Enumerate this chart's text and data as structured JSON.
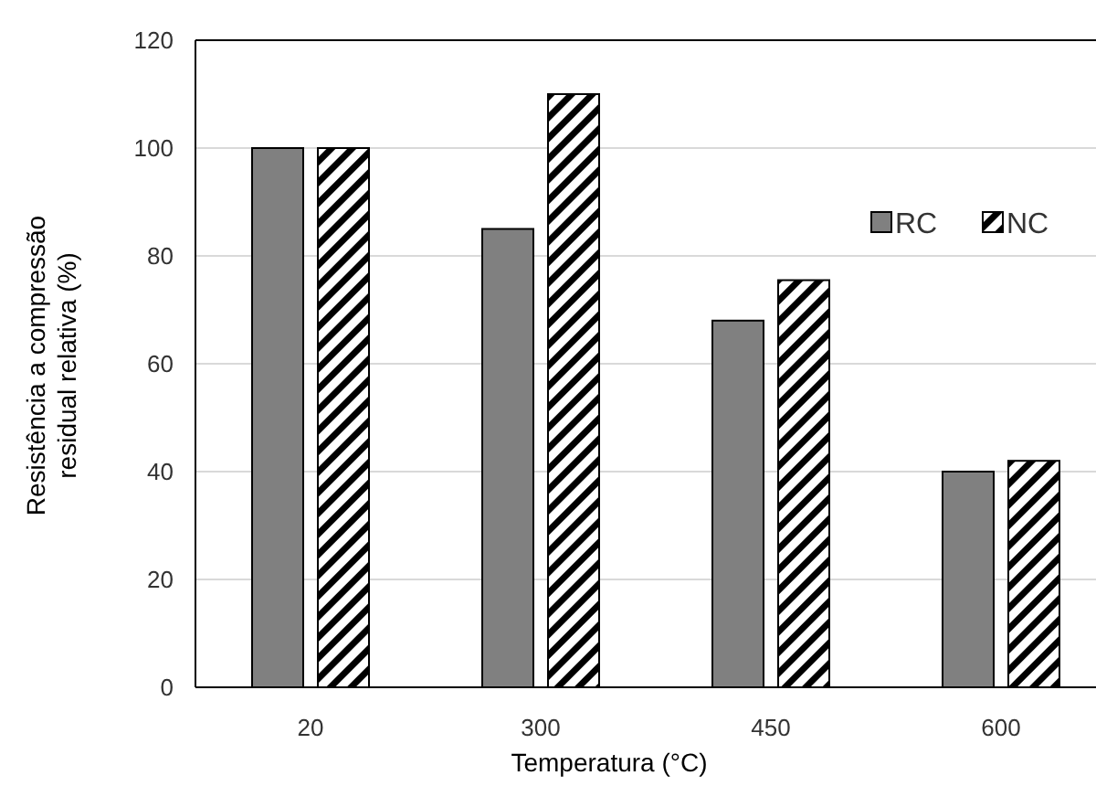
{
  "chart_data": {
    "type": "bar",
    "xlabel": "Temperatura (°C)",
    "ylabel": "Resistência a compressão\nresidual relativa (%)",
    "categories": [
      "20",
      "300",
      "450",
      "600"
    ],
    "series": [
      {
        "name": "RC",
        "color": "#808080",
        "values": [
          100,
          85,
          68,
          40
        ]
      },
      {
        "name": "NC",
        "color": "#000000",
        "values": [
          100,
          110,
          75.5,
          42
        ]
      }
    ],
    "ylim": [
      0,
      120
    ],
    "yticks": [
      0,
      20,
      40,
      60,
      80,
      100,
      120
    ],
    "grid": "y",
    "legend": "top right"
  }
}
